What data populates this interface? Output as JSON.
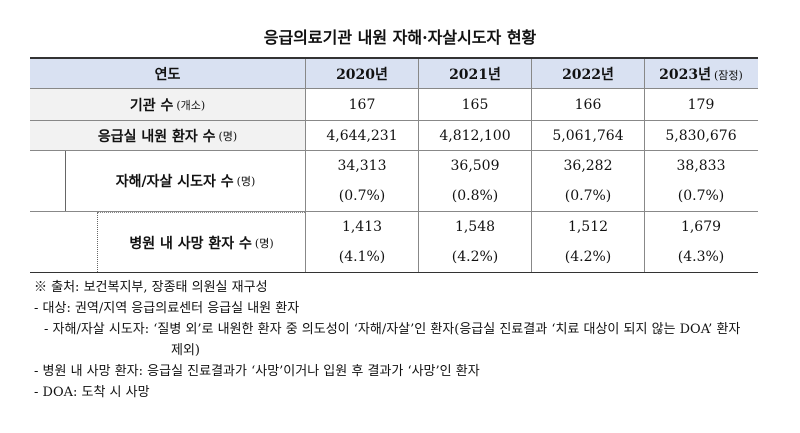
{
  "title": "응급의료기관 내원 자해·자살시도자 현황",
  "table": {
    "header": {
      "label": "연도",
      "years": [
        {
          "text": "2020년"
        },
        {
          "text": "2021년"
        },
        {
          "text": "2022년"
        },
        {
          "text": "2023년",
          "note": "(잠정)"
        }
      ]
    },
    "rows": [
      {
        "label": "기관 수",
        "unit": "(개소)",
        "values": [
          "167",
          "165",
          "166",
          "179"
        ]
      },
      {
        "label": "응급실 내원 환자 수",
        "unit": "(명)",
        "values": [
          "4,644,231",
          "4,812,100",
          "5,061,764",
          "5,830,676"
        ]
      },
      {
        "label": "자해/자살 시도자 수",
        "unit": "(명)",
        "values": [
          "34,313",
          "36,509",
          "36,282",
          "38,833"
        ],
        "shares": [
          "(0.7%)",
          "(0.8%)",
          "(0.7%)",
          "(0.7%)"
        ]
      },
      {
        "label": "병원 내 사망 환자 수",
        "unit": "(명)",
        "values": [
          "1,413",
          "1,548",
          "1,512",
          "1,679"
        ],
        "shares": [
          "(4.1%)",
          "(4.2%)",
          "(4.2%)",
          "(4.3%)"
        ]
      }
    ]
  },
  "notes": [
    "※ 출처: 보건복지부, 장종태 의원실 재구성",
    "- 대상: 권역/지역 응급의료센터 응급실 내원 환자",
    "- 자해/자살 시도자: ‘질병 외’로 내원한 환자 중 의도성이 ‘자해/자살’인 환자(응급실 진료결과 ‘치료 대상이 되지 않는 DOA’ 환자 제외)",
    "- 병원 내 사망 환자: 응급실 진료결과가 ‘사망’이거나 입원 후 결과가 ‘사망’인 환자",
    "- DOA: 도착 시 사망"
  ]
}
